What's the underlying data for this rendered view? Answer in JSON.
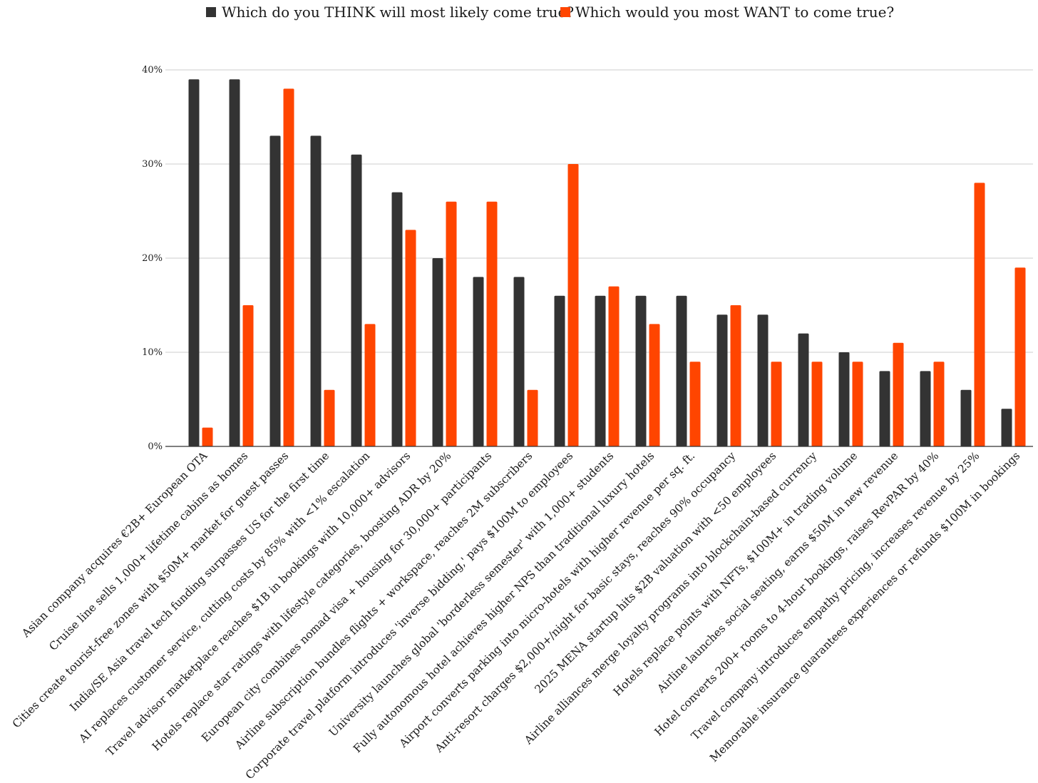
{
  "chart_data": {
    "type": "bar",
    "categories": [
      "Asian company acquires €2B+ European OTA",
      "Cruise line sells 1,000+ lifetime cabins as homes",
      "Cities create tourist-free zones with $50M+ market for guest passes",
      "India/SE Asia travel tech funding surpasses US for the first time",
      "AI replaces customer service, cutting costs by 85% with <1% escalation",
      "Travel advisor marketplace reaches $1B in bookings with 10,000+ advisors",
      "Hotels replace star ratings with lifestyle categories, boosting ADR by 20%",
      "European city combines nomad visa + housing for 30,000+ participants",
      "Airline subscription bundles flights + workspace, reaches 2M subscribers",
      "Corporate travel platform introduces 'inverse bidding,' pays $100M to employees",
      "University launches global 'borderless semester' with 1,000+ students",
      "Fully autonomous hotel achieves higher NPS than traditional luxury hotels",
      "Airport converts parking into micro-hotels with higher revenue per sq. ft.",
      "Anti-resort charges $2,000+/night for basic stays, reaches 90% occupancy",
      "2025 MENA startup hits $2B valuation with <50 employees",
      "Airline alliances merge loyalty programs into blockchain-based currency",
      "Hotels replace points with NFTs, $100M+ in trading volume",
      "Airline launches social seating, earns $50M in new revenue",
      "Hotel converts 200+ rooms to 4-hour bookings, raises RevPAR by 40%",
      "Travel company introduces empathy pricing, increases revenue by 25%",
      "Memorable insurance guarantees experiences or refunds $100M in bookings"
    ],
    "series": [
      {
        "name": "Which do you THINK will most likely come true?",
        "color": "#333333",
        "values": [
          39,
          39,
          33,
          33,
          31,
          27,
          20,
          18,
          18,
          16,
          16,
          16,
          16,
          14,
          14,
          12,
          10,
          8,
          8,
          6,
          4
        ]
      },
      {
        "name": "Which would you most WANT to come true?",
        "color": "#ff4500",
        "values": [
          2,
          15,
          38,
          6,
          13,
          23,
          26,
          26,
          6,
          30,
          17,
          13,
          9,
          15,
          9,
          9,
          9,
          11,
          9,
          28,
          19
        ]
      }
    ],
    "ylim": [
      0,
      40
    ],
    "yticks": [
      "0%",
      "10%",
      "20%",
      "30%",
      "40%"
    ],
    "ytick_values": [
      0,
      10,
      20,
      30,
      40
    ],
    "grid": true,
    "legend_position": "top-center"
  }
}
